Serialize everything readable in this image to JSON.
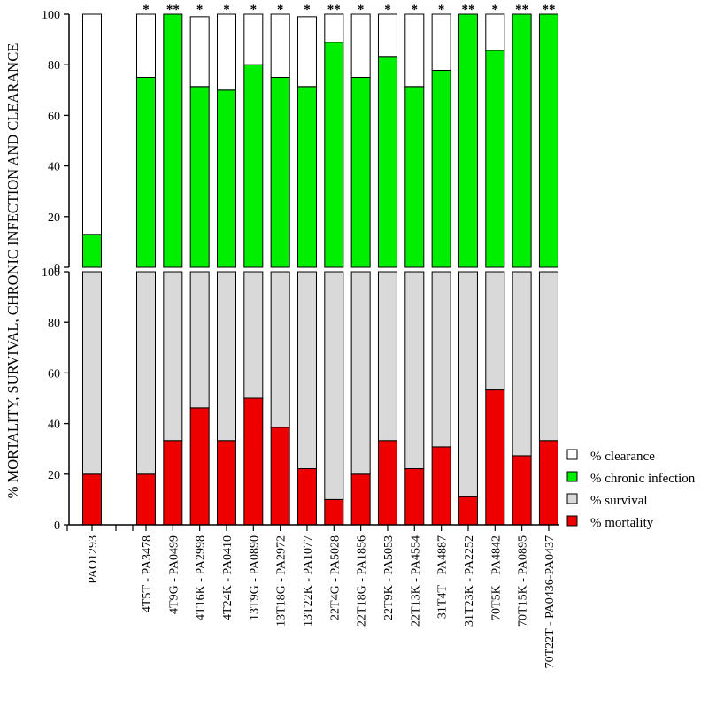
{
  "chart_data": {
    "type": "bar",
    "stacked": true,
    "ylabel": "% MORTALITY, SURVIVAL, CHRONIC INFECTION AND CLEARANCE",
    "categories": [
      "PAO1293",
      "4T5T - PA3478",
      "4T9G - PA0499",
      "4T16K - PA2998",
      "4T24K - PA0410",
      "13T9G - PA0890",
      "13T18G - PA2972",
      "13T22K - PA1077",
      "22T4G - PA5028",
      "22T18G - PA1856",
      "22T9K - PA5053",
      "22T13K - PA4554",
      "31T4T - PA4887",
      "31T23K - PA2252",
      "70T5K - PA4842",
      "70T15K - PA0895",
      "70T22T - PA0436-PA0437"
    ],
    "panels": [
      {
        "name": "top",
        "ylim": [
          0,
          100
        ],
        "yticks": [
          "0",
          "20",
          "40",
          "60",
          "80",
          "100"
        ],
        "series": [
          {
            "name": "% chronic infection",
            "color": "#00ee00",
            "values": [
              13,
              75,
              100,
              71.4,
              70,
              80,
              75,
              71.4,
              88.9,
              75,
              83.3,
              71.4,
              77.8,
              100,
              85.7,
              100,
              100
            ]
          },
          {
            "name": "% clearance",
            "color": "#ffffff",
            "values": [
              87,
              25,
              0,
              27.6,
              30,
              20,
              25,
              27.6,
              11.1,
              25,
              16.7,
              28.6,
              22.2,
              0,
              14.3,
              0,
              0
            ]
          }
        ],
        "significance": [
          "",
          "*",
          "**",
          "*",
          "*",
          "*",
          "*",
          "*",
          "**",
          "*",
          "*",
          "*",
          "*",
          "**",
          "*",
          "**",
          "**"
        ]
      },
      {
        "name": "bottom",
        "ylim": [
          0,
          100
        ],
        "yticks": [
          "0",
          "20",
          "40",
          "60",
          "80",
          "100"
        ],
        "series": [
          {
            "name": "% mortality",
            "color": "#ee0000",
            "values": [
              20,
              20,
              33.3,
              46.2,
              33.3,
              50,
              38.5,
              22.2,
              10,
              20,
              33.3,
              22.2,
              30.8,
              11.1,
              53.3,
              27.3,
              33.3
            ]
          },
          {
            "name": "% survival",
            "color": "#d9d9d9",
            "values": [
              80,
              80,
              66.7,
              53.8,
              66.7,
              50,
              61.5,
              77.8,
              90,
              80,
              66.7,
              77.8,
              69.2,
              88.9,
              46.7,
              72.7,
              66.7
            ]
          }
        ]
      }
    ],
    "legend": {
      "position": "right",
      "entries": [
        {
          "label": "% clearance",
          "color": "#ffffff"
        },
        {
          "label": "% chronic infection",
          "color": "#00ee00"
        },
        {
          "label": "% survival",
          "color": "#d9d9d9"
        },
        {
          "label": "% mortality",
          "color": "#ee0000"
        }
      ]
    }
  }
}
